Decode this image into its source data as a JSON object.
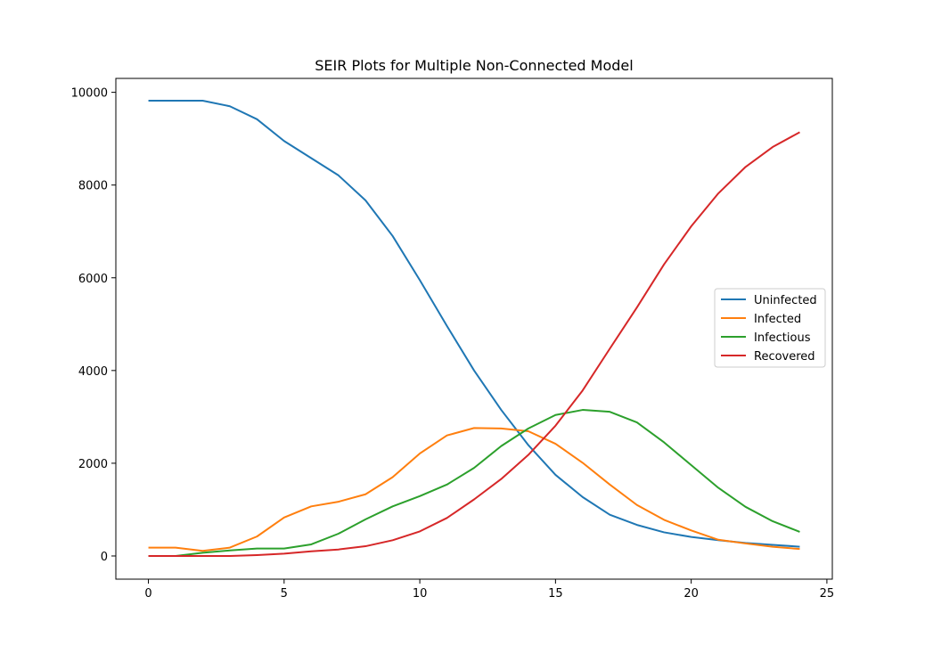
{
  "chart_data": {
    "type": "line",
    "title": "SEIR Plots for Multiple Non-Connected Model",
    "xlabel": "",
    "ylabel": "",
    "xlim": [
      -1.2,
      25.2
    ],
    "ylim": [
      -500,
      10300
    ],
    "xticks": [
      0,
      5,
      10,
      15,
      20,
      25
    ],
    "yticks": [
      0,
      2000,
      4000,
      6000,
      8000,
      10000
    ],
    "grid": false,
    "legend_placement": "center-right",
    "x": [
      0,
      1,
      2,
      3,
      4,
      5,
      6,
      7,
      8,
      9,
      10,
      11,
      12,
      13,
      14,
      15,
      16,
      17,
      18,
      19,
      20,
      21,
      22,
      23,
      24
    ],
    "series": [
      {
        "name": "Uninfected",
        "color": "#1f77b4",
        "values": [
          9820,
          9820,
          9820,
          9700,
          9420,
          8950,
          8580,
          8210,
          7670,
          6900,
          5950,
          4960,
          4000,
          3150,
          2390,
          1750,
          1270,
          890,
          670,
          510,
          410,
          340,
          280,
          240,
          200
        ]
      },
      {
        "name": "Infected",
        "color": "#ff7f0e",
        "values": [
          180,
          180,
          110,
          180,
          420,
          830,
          1070,
          1170,
          1330,
          1700,
          2210,
          2600,
          2760,
          2750,
          2690,
          2420,
          2010,
          1540,
          1100,
          780,
          550,
          350,
          270,
          200,
          150
        ]
      },
      {
        "name": "Infectious",
        "color": "#2ca02c",
        "values": [
          0,
          0,
          70,
          120,
          160,
          160,
          250,
          480,
          790,
          1070,
          1290,
          1540,
          1900,
          2370,
          2750,
          3040,
          3150,
          3110,
          2880,
          2450,
          1960,
          1470,
          1060,
          750,
          520
        ]
      },
      {
        "name": "Recovered",
        "color": "#d62728",
        "values": [
          0,
          0,
          0,
          0,
          20,
          50,
          100,
          140,
          210,
          340,
          530,
          820,
          1220,
          1660,
          2180,
          2810,
          3570,
          4470,
          5360,
          6290,
          7110,
          7820,
          8390,
          8820,
          9140
        ]
      }
    ]
  }
}
